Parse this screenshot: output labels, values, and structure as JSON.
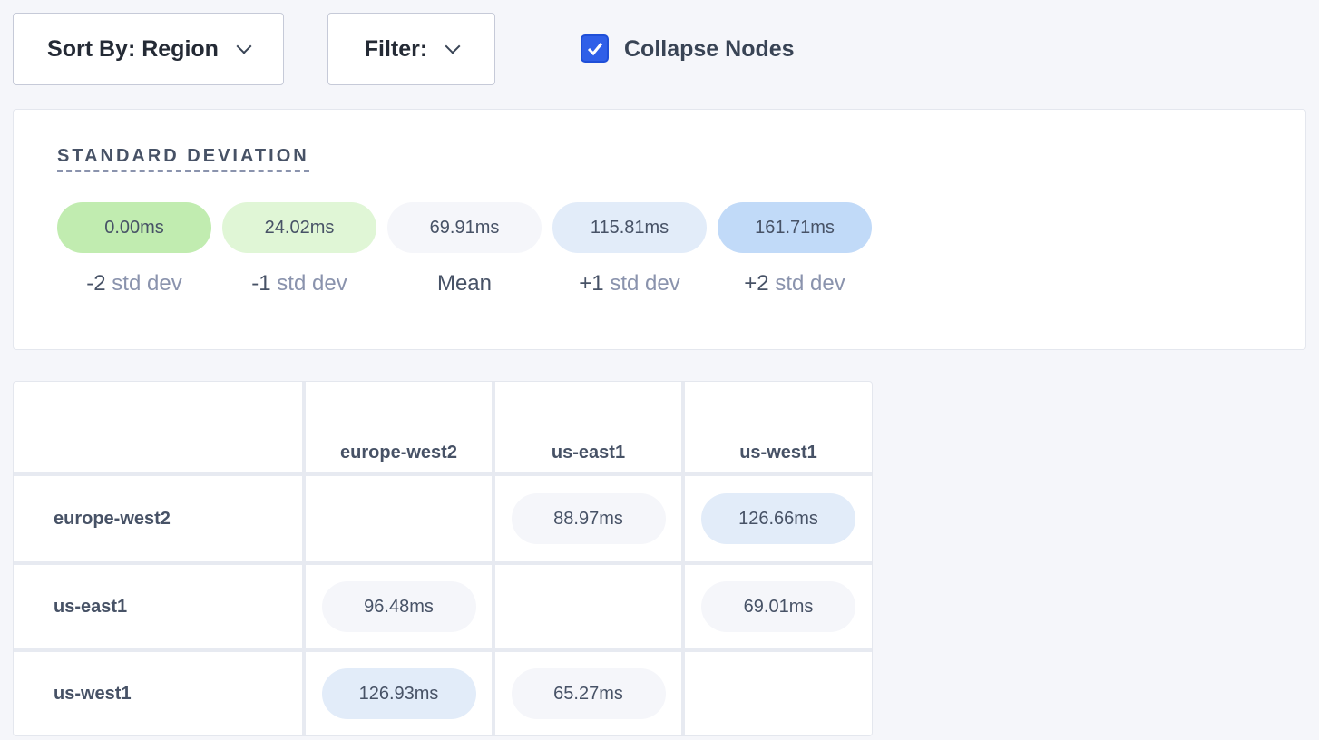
{
  "toolbar": {
    "sort_label": "Sort By: Region",
    "filter_label": "Filter:",
    "collapse_label": "Collapse Nodes",
    "collapse_checked": true,
    "accent": "#2f5fe8"
  },
  "stddev": {
    "title": "STANDARD DEVIATION",
    "items": [
      {
        "value": "0.00ms",
        "prefix": "-2",
        "unit": " std dev",
        "color": "#c1ecb0"
      },
      {
        "value": "24.02ms",
        "prefix": "-1",
        "unit": " std dev",
        "color": "#e0f6d6"
      },
      {
        "value": "69.91ms",
        "prefix": "Mean",
        "unit": "",
        "color": "#f5f6fa"
      },
      {
        "value": "115.81ms",
        "prefix": "+1",
        "unit": " std dev",
        "color": "#e2ecf9"
      },
      {
        "value": "161.71ms",
        "prefix": "+2",
        "unit": " std dev",
        "color": "#c1daf8"
      }
    ]
  },
  "matrix": {
    "columns": [
      "europe-west2",
      "us-east1",
      "us-west1"
    ],
    "rows": [
      {
        "label": "europe-west2",
        "cells": [
          null,
          {
            "value": "88.97ms",
            "color": "#f5f6fa"
          },
          {
            "value": "126.66ms",
            "color": "#e2ecf9"
          }
        ]
      },
      {
        "label": "us-east1",
        "cells": [
          {
            "value": "96.48ms",
            "color": "#f5f6fa"
          },
          null,
          {
            "value": "69.01ms",
            "color": "#f5f6fa"
          }
        ]
      },
      {
        "label": "us-west1",
        "cells": [
          {
            "value": "126.93ms",
            "color": "#e2ecf9"
          },
          {
            "value": "65.27ms",
            "color": "#f5f6fa"
          },
          null
        ]
      }
    ]
  }
}
